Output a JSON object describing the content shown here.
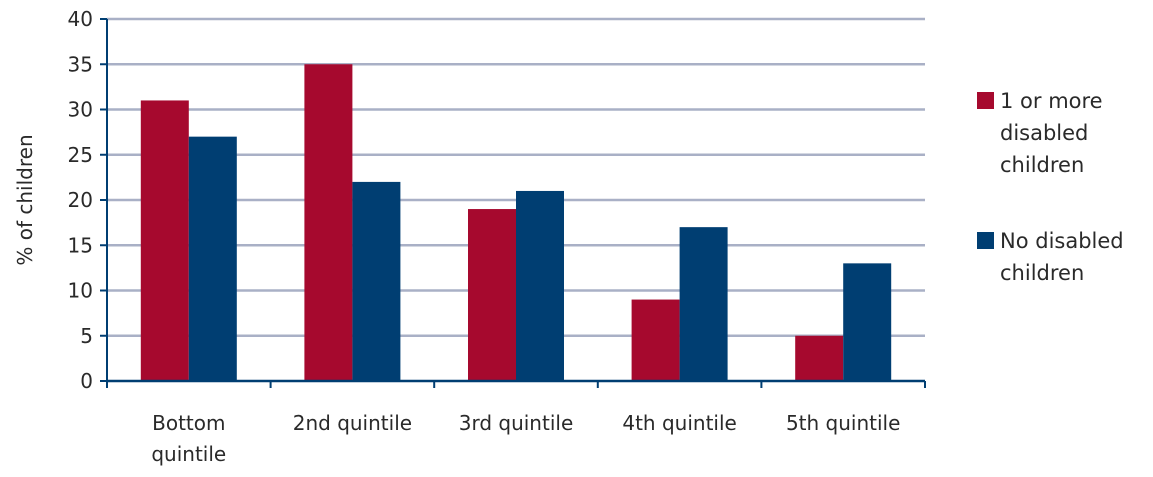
{
  "chart_data": {
    "type": "bar",
    "title": "",
    "ylabel": "% of children",
    "xlabel": "",
    "ylim": [
      0,
      40
    ],
    "yticks": [
      0,
      5,
      10,
      15,
      20,
      25,
      30,
      35,
      40
    ],
    "grid": true,
    "legend_position": "right",
    "categories": [
      [
        "Bottom",
        "quintile"
      ],
      [
        "2nd quintile"
      ],
      [
        "3rd quintile"
      ],
      [
        "4th quintile"
      ],
      [
        "5th quintile"
      ]
    ],
    "series": [
      {
        "name": [
          "1 or more",
          "disabled",
          "children"
        ],
        "color": "#a6092e",
        "values": [
          31,
          35,
          19,
          9,
          5
        ]
      },
      {
        "name": [
          "No disabled",
          "children"
        ],
        "color": "#003e72",
        "values": [
          27,
          22,
          21,
          17,
          13
        ]
      }
    ],
    "colors": {
      "grid": "#a9b0c6",
      "axis": "#003e72"
    }
  }
}
